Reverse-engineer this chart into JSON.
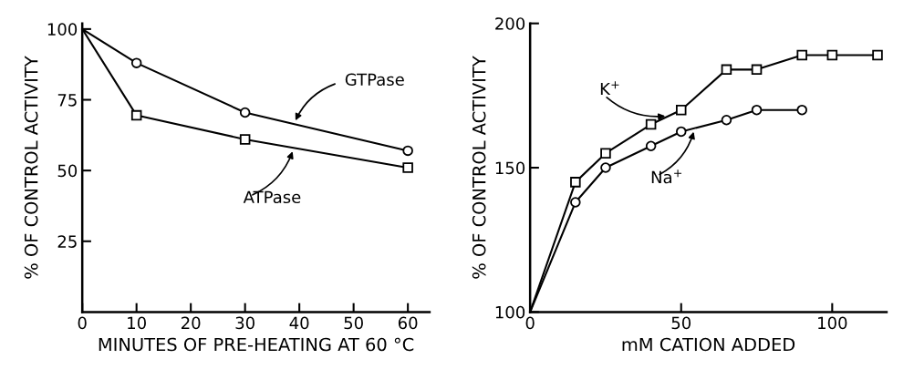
{
  "chart_data": [
    {
      "type": "line",
      "xlabel": "MINUTES OF PRE-HEATING AT 60 °C",
      "ylabel": "% OF CONTROL ACTIVITY",
      "xlim": [
        0,
        64
      ],
      "xticks": [
        0,
        10,
        20,
        30,
        40,
        50,
        60
      ],
      "ylim": [
        0,
        102
      ],
      "yticks": [
        25,
        50,
        75,
        100
      ],
      "grid": false,
      "legend": false,
      "series": [
        {
          "name": "GTPase",
          "color": "#000000",
          "marker": "circle",
          "x": [
            0,
            10,
            30,
            60
          ],
          "values": [
            100,
            88,
            70.5,
            57
          ]
        },
        {
          "name": "ATPase",
          "color": "#000000",
          "marker": "square",
          "x": [
            0,
            10,
            30,
            60
          ],
          "values": [
            100,
            69.5,
            61,
            51
          ]
        }
      ]
    },
    {
      "type": "line",
      "xlabel": "mM CATION ADDED",
      "ylabel": "% OF CONTROL ACTIVITY",
      "xlim": [
        0,
        118
      ],
      "xticks": [
        0,
        50,
        100
      ],
      "ylim": [
        100,
        200
      ],
      "yticks": [
        100,
        150,
        200
      ],
      "grid": false,
      "legend": false,
      "series": [
        {
          "name": "K$^{+}$",
          "color": "#000000",
          "marker": "square",
          "x": [
            0,
            15,
            25,
            40,
            50,
            65,
            75,
            90,
            100,
            115
          ],
          "values": [
            100,
            145,
            155,
            165,
            170,
            184,
            184,
            189,
            189,
            189
          ]
        },
        {
          "name": "Na$^{+}$",
          "color": "#000000",
          "marker": "circle",
          "x": [
            0,
            15,
            25,
            40,
            50,
            65,
            75,
            90
          ],
          "values": [
            100,
            138,
            150,
            157.5,
            162.5,
            166.5,
            170,
            170
          ]
        }
      ]
    }
  ]
}
